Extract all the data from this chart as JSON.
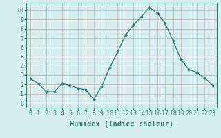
{
  "x": [
    0,
    1,
    2,
    3,
    4,
    5,
    6,
    7,
    8,
    9,
    10,
    11,
    12,
    13,
    14,
    15,
    16,
    17,
    18,
    19,
    20,
    21,
    22,
    23
  ],
  "y": [
    2.6,
    2.1,
    1.2,
    1.2,
    2.1,
    1.9,
    1.6,
    1.4,
    0.4,
    1.8,
    3.8,
    5.5,
    7.3,
    8.4,
    9.3,
    10.3,
    9.7,
    8.6,
    6.7,
    4.7,
    3.6,
    3.3,
    2.7,
    1.9
  ],
  "line_color": "#2e7d6e",
  "marker": "D",
  "marker_size": 2.0,
  "bg_color": "#d6eef0",
  "grid_color_h": "#c8b8b8",
  "grid_color_v": "#c8b8b8",
  "xlabel": "Humidex (Indice chaleur)",
  "ylim": [
    -0.5,
    10.8
  ],
  "xlim": [
    -0.5,
    23.5
  ],
  "yticks": [
    0,
    1,
    2,
    3,
    4,
    5,
    6,
    7,
    8,
    9,
    10
  ],
  "xticks": [
    0,
    1,
    2,
    3,
    4,
    5,
    6,
    7,
    8,
    9,
    10,
    11,
    12,
    13,
    14,
    15,
    16,
    17,
    18,
    19,
    20,
    21,
    22,
    23
  ],
  "tick_fontsize": 6.0,
  "xlabel_fontsize": 7.5,
  "label_color": "#2e7d6e"
}
